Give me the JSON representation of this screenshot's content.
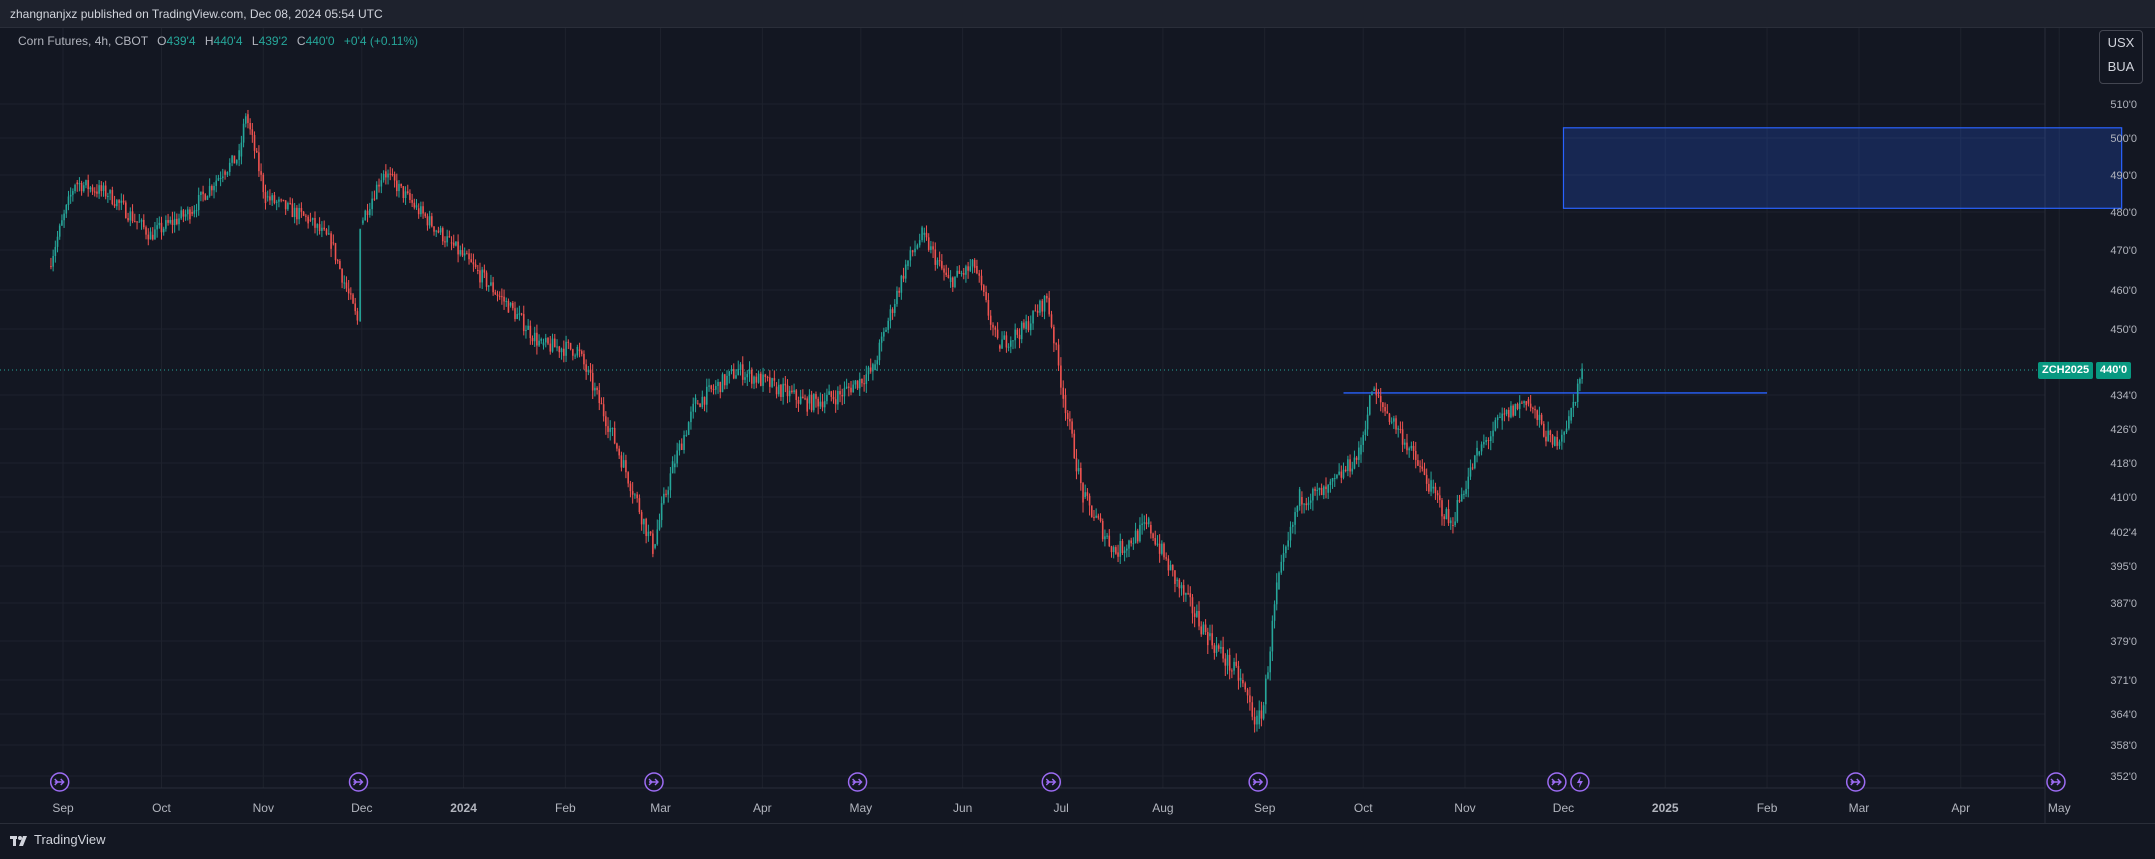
{
  "header": {
    "publish_line": "zhangnanjxz published on TradingView.com, Dec 08, 2024 05:54 UTC"
  },
  "legend": {
    "symbol": "Corn Futures, 4h, CBOT",
    "open_label": "O",
    "open": "439'4",
    "high_label": "H",
    "high": "440'4",
    "low_label": "L",
    "low": "439'2",
    "close_label": "C",
    "close": "440'0",
    "change": "+0'4 (+0.11%)"
  },
  "currency": {
    "line1": "USX",
    "line2": "BUA"
  },
  "price_tag": {
    "symbol": "ZCH2025",
    "price": "440'0"
  },
  "footer": {
    "brand": "TradingView"
  },
  "colors": {
    "up": "#26a69a",
    "down": "#ef5350",
    "zone": "#2962ff",
    "line": "#2962ff",
    "event_icon": "#9c6cf3",
    "background": "#131722"
  },
  "chart_data": {
    "type": "candlestick",
    "title": "Corn Futures, 4h, CBOT",
    "y_axis": {
      "ticks": [
        {
          "label": "510'0",
          "value": 510
        },
        {
          "label": "500'0",
          "value": 500
        },
        {
          "label": "490'0",
          "value": 490
        },
        {
          "label": "480'0",
          "value": 480
        },
        {
          "label": "470'0",
          "value": 470
        },
        {
          "label": "460'0",
          "value": 460
        },
        {
          "label": "450'0",
          "value": 450
        },
        {
          "label": "434'0",
          "value": 434
        },
        {
          "label": "426'0",
          "value": 426
        },
        {
          "label": "418'0",
          "value": 418
        },
        {
          "label": "410'0",
          "value": 410
        },
        {
          "label": "402'4",
          "value": 402.5
        },
        {
          "label": "395'0",
          "value": 395
        },
        {
          "label": "387'0",
          "value": 387
        },
        {
          "label": "379'0",
          "value": 379
        },
        {
          "label": "371'0",
          "value": 371
        },
        {
          "label": "364'0",
          "value": 364
        },
        {
          "label": "358'0",
          "value": 358
        },
        {
          "label": "352'0",
          "value": 352
        }
      ]
    },
    "x_axis": {
      "labels": [
        "Sep",
        "Oct",
        "Nov",
        "Dec",
        "2024",
        "Feb",
        "Mar",
        "Apr",
        "May",
        "Jun",
        "Jul",
        "Aug",
        "Sep",
        "Oct",
        "Nov",
        "Dec",
        "2025",
        "Feb",
        "Mar",
        "Apr",
        "May"
      ]
    },
    "price_path": [
      {
        "date": "2023-08-28",
        "value": 466
      },
      {
        "date": "2023-09-05",
        "value": 488
      },
      {
        "date": "2023-09-15",
        "value": 485
      },
      {
        "date": "2023-09-28",
        "value": 474
      },
      {
        "date": "2023-10-10",
        "value": 480
      },
      {
        "date": "2023-10-20",
        "value": 491
      },
      {
        "date": "2023-10-25",
        "value": 495
      },
      {
        "date": "2023-10-27",
        "value": 507
      },
      {
        "date": "2023-11-02",
        "value": 484
      },
      {
        "date": "2023-11-15",
        "value": 478
      },
      {
        "date": "2023-11-22",
        "value": 472
      },
      {
        "date": "2023-11-30",
        "value": 452
      },
      {
        "date": "2023-12-01",
        "value": 477
      },
      {
        "date": "2023-12-08",
        "value": 491
      },
      {
        "date": "2023-12-18",
        "value": 481
      },
      {
        "date": "2023-12-28",
        "value": 472
      },
      {
        "date": "2024-01-05",
        "value": 465
      },
      {
        "date": "2024-01-15",
        "value": 456
      },
      {
        "date": "2024-01-25",
        "value": 446
      },
      {
        "date": "2024-02-05",
        "value": 445
      },
      {
        "date": "2024-02-15",
        "value": 426
      },
      {
        "date": "2024-02-28",
        "value": 399
      },
      {
        "date": "2024-03-05",
        "value": 417
      },
      {
        "date": "2024-03-12",
        "value": 432
      },
      {
        "date": "2024-03-25",
        "value": 440
      },
      {
        "date": "2024-04-05",
        "value": 436
      },
      {
        "date": "2024-04-15",
        "value": 432
      },
      {
        "date": "2024-04-25",
        "value": 434
      },
      {
        "date": "2024-05-05",
        "value": 440
      },
      {
        "date": "2024-05-15",
        "value": 466
      },
      {
        "date": "2024-05-20",
        "value": 474
      },
      {
        "date": "2024-05-28",
        "value": 462
      },
      {
        "date": "2024-06-05",
        "value": 466
      },
      {
        "date": "2024-06-12",
        "value": 446
      },
      {
        "date": "2024-06-20",
        "value": 450
      },
      {
        "date": "2024-06-27",
        "value": 458
      },
      {
        "date": "2024-07-02",
        "value": 434
      },
      {
        "date": "2024-07-08",
        "value": 410
      },
      {
        "date": "2024-07-18",
        "value": 398
      },
      {
        "date": "2024-07-28",
        "value": 404
      },
      {
        "date": "2024-08-05",
        "value": 392
      },
      {
        "date": "2024-08-15",
        "value": 380
      },
      {
        "date": "2024-08-25",
        "value": 371
      },
      {
        "date": "2024-08-30",
        "value": 362
      },
      {
        "date": "2024-09-01",
        "value": 366
      },
      {
        "date": "2024-09-05",
        "value": 390
      },
      {
        "date": "2024-09-12",
        "value": 410
      },
      {
        "date": "2024-09-20",
        "value": 411
      },
      {
        "date": "2024-09-30",
        "value": 420
      },
      {
        "date": "2024-10-04",
        "value": 435
      },
      {
        "date": "2024-10-12",
        "value": 426
      },
      {
        "date": "2024-10-22",
        "value": 412
      },
      {
        "date": "2024-10-28",
        "value": 404
      },
      {
        "date": "2024-11-05",
        "value": 420
      },
      {
        "date": "2024-11-12",
        "value": 428
      },
      {
        "date": "2024-11-20",
        "value": 433
      },
      {
        "date": "2024-11-28",
        "value": 422
      },
      {
        "date": "2024-12-03",
        "value": 428
      },
      {
        "date": "2024-12-07",
        "value": 440
      }
    ],
    "last_price": {
      "symbol": "ZCH2025",
      "value": 440
    },
    "zone": {
      "from_date": "2024-12-01",
      "to_date": "2025-05-20",
      "low": 481,
      "high": 503
    },
    "resistance_line": {
      "from_date": "2024-09-25",
      "to_date": "2025-02-01",
      "value": 434.5
    },
    "event_markers": [
      {
        "date": "2023-08-31",
        "kind": "rollover"
      },
      {
        "date": "2023-11-30",
        "kind": "rollover"
      },
      {
        "date": "2024-02-28",
        "kind": "rollover"
      },
      {
        "date": "2024-04-30",
        "kind": "rollover"
      },
      {
        "date": "2024-06-28",
        "kind": "rollover"
      },
      {
        "date": "2024-08-30",
        "kind": "rollover"
      },
      {
        "date": "2024-11-29",
        "kind": "rollover"
      },
      {
        "date": "2024-12-06",
        "kind": "dividend"
      },
      {
        "date": "2025-02-28",
        "kind": "rollover"
      },
      {
        "date": "2025-04-30",
        "kind": "rollover"
      }
    ],
    "grid": true
  }
}
